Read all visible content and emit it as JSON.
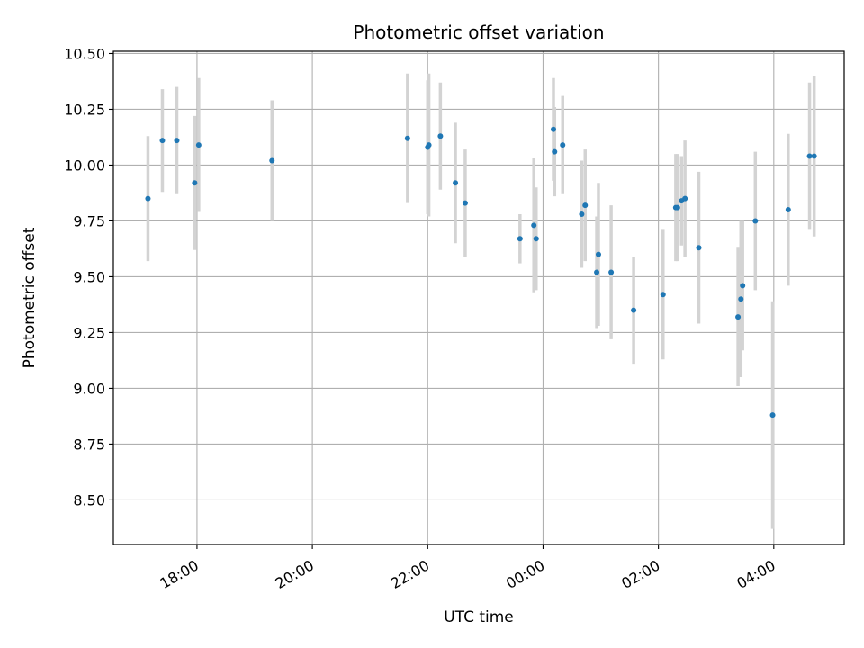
{
  "chart_data": {
    "type": "scatter",
    "title": "Photometric offset variation",
    "xlabel": "UTC time",
    "ylabel": "Photometric offset",
    "grid": true,
    "legend": "none",
    "x_unit": "hours since 18:00 UTC",
    "xlim": [
      -1.45,
      11.22
    ],
    "ylim": [
      8.3,
      10.51
    ],
    "x_ticks": [
      {
        "value": 0,
        "label": "18:00"
      },
      {
        "value": 2,
        "label": "20:00"
      },
      {
        "value": 4,
        "label": "22:00"
      },
      {
        "value": 6,
        "label": "00:00"
      },
      {
        "value": 8,
        "label": "02:00"
      },
      {
        "value": 10,
        "label": "04:00"
      }
    ],
    "y_ticks": [
      {
        "value": 8.5,
        "label": "8.50"
      },
      {
        "value": 8.75,
        "label": "8.75"
      },
      {
        "value": 9.0,
        "label": "9.00"
      },
      {
        "value": 9.25,
        "label": "9.25"
      },
      {
        "value": 9.5,
        "label": "9.50"
      },
      {
        "value": 9.75,
        "label": "9.75"
      },
      {
        "value": 10.0,
        "label": "10.00"
      },
      {
        "value": 10.25,
        "label": "10.25"
      },
      {
        "value": 10.5,
        "label": "10.50"
      }
    ],
    "colors": {
      "point": "#1f77b4",
      "errorbar": "#d3d3d3",
      "grid": "#b0b0b0",
      "axis": "#000000"
    },
    "points": [
      {
        "x": -0.85,
        "y": 9.85,
        "err": 0.28
      },
      {
        "x": -0.6,
        "y": 10.11,
        "err": 0.23
      },
      {
        "x": -0.35,
        "y": 10.11,
        "err": 0.24
      },
      {
        "x": -0.04,
        "y": 9.92,
        "err": 0.3
      },
      {
        "x": 0.03,
        "y": 10.09,
        "err": 0.3
      },
      {
        "x": 1.3,
        "y": 10.02,
        "err": 0.27
      },
      {
        "x": 3.65,
        "y": 10.12,
        "err": 0.29
      },
      {
        "x": 4.0,
        "y": 10.08,
        "err": 0.3
      },
      {
        "x": 4.02,
        "y": 10.09,
        "err": 0.32
      },
      {
        "x": 4.22,
        "y": 10.13,
        "err": 0.24
      },
      {
        "x": 4.48,
        "y": 9.92,
        "err": 0.27
      },
      {
        "x": 4.65,
        "y": 9.83,
        "err": 0.24
      },
      {
        "x": 5.6,
        "y": 9.67,
        "err": 0.11
      },
      {
        "x": 5.84,
        "y": 9.73,
        "err": 0.3
      },
      {
        "x": 5.88,
        "y": 9.67,
        "err": 0.23
      },
      {
        "x": 6.18,
        "y": 10.16,
        "err": 0.23
      },
      {
        "x": 6.2,
        "y": 10.06,
        "err": 0.2
      },
      {
        "x": 6.34,
        "y": 10.09,
        "err": 0.22
      },
      {
        "x": 6.67,
        "y": 9.78,
        "err": 0.24
      },
      {
        "x": 6.73,
        "y": 9.82,
        "err": 0.25
      },
      {
        "x": 6.93,
        "y": 9.52,
        "err": 0.25
      },
      {
        "x": 6.96,
        "y": 9.6,
        "err": 0.32
      },
      {
        "x": 7.18,
        "y": 9.52,
        "err": 0.3
      },
      {
        "x": 7.57,
        "y": 9.35,
        "err": 0.24
      },
      {
        "x": 8.08,
        "y": 9.42,
        "err": 0.29
      },
      {
        "x": 8.3,
        "y": 9.81,
        "err": 0.24
      },
      {
        "x": 8.33,
        "y": 9.81,
        "err": 0.24
      },
      {
        "x": 8.4,
        "y": 9.84,
        "err": 0.2
      },
      {
        "x": 8.46,
        "y": 9.85,
        "err": 0.26
      },
      {
        "x": 8.7,
        "y": 9.63,
        "err": 0.34
      },
      {
        "x": 9.38,
        "y": 9.32,
        "err": 0.31
      },
      {
        "x": 9.43,
        "y": 9.4,
        "err": 0.35
      },
      {
        "x": 9.46,
        "y": 9.46,
        "err": 0.29
      },
      {
        "x": 9.68,
        "y": 9.75,
        "err": 0.31
      },
      {
        "x": 9.98,
        "y": 8.88,
        "err": 0.51
      },
      {
        "x": 10.25,
        "y": 9.8,
        "err": 0.34
      },
      {
        "x": 10.62,
        "y": 10.04,
        "err": 0.33
      },
      {
        "x": 10.7,
        "y": 10.04,
        "err": 0.36
      }
    ]
  }
}
